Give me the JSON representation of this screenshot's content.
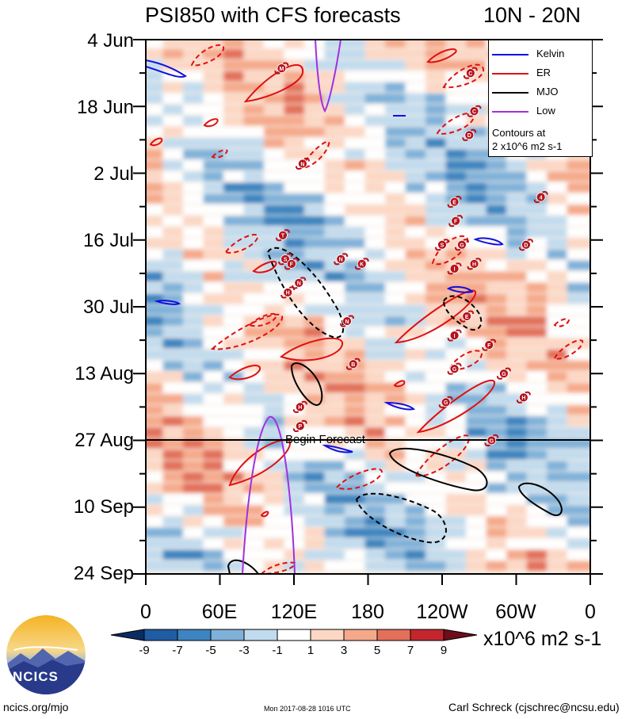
{
  "title": {
    "main": "PSI850 with CFS forecasts",
    "region": "10N - 20N"
  },
  "chart_data": {
    "type": "heatmap",
    "description_kind": "time-longitude Hovmoller",
    "x": {
      "ticks": [
        "0",
        "60E",
        "120E",
        "180",
        "120W",
        "60W",
        "0"
      ],
      "tick_values_deg_east": [
        0,
        60,
        120,
        180,
        240,
        300,
        360
      ],
      "range": [
        0,
        360
      ]
    },
    "y": {
      "ticks": [
        "4 Jun",
        "18 Jun",
        "2 Jul",
        "16 Jul",
        "30 Jul",
        "13 Aug",
        "27 Aug",
        "10 Sep",
        "24 Sep"
      ],
      "range": [
        "2017-06-04",
        "2017-09-24"
      ],
      "direction": "down"
    },
    "forecast_start": {
      "date": "2017-08-27",
      "label": "Begin Forecast"
    },
    "colorbar": {
      "labels": [
        "-9",
        "-7",
        "-5",
        "-3",
        "-1",
        "1",
        "3",
        "5",
        "7",
        "9"
      ],
      "levels": [
        -9,
        -7,
        -5,
        -3,
        -1,
        1,
        3,
        5,
        7,
        9
      ],
      "colors": [
        "#0b2c63",
        "#1f5ca3",
        "#3d84c0",
        "#7fb1d9",
        "#c1dbee",
        "#ffffff",
        "#fcd7c4",
        "#f5a98a",
        "#e2705a",
        "#c4262e",
        "#6d0e1a"
      ],
      "units": "x10^6 m2 s-1"
    },
    "legend": {
      "entries": [
        {
          "name": "Kelvin",
          "color": "#1010e0"
        },
        {
          "name": "ER",
          "color": "#e01010"
        },
        {
          "name": "MJO",
          "color": "#000000"
        },
        {
          "name": "Low",
          "color": "#a030e0"
        }
      ],
      "note_line1": "Contours at",
      "note_line2": "2 x10^6 m2 s-1",
      "placement": "top-right"
    },
    "storms": [
      {
        "letter": "M",
        "lon": 110,
        "date": "2017-06-10"
      },
      {
        "letter": "C",
        "lon": 263,
        "date": "2017-06-11"
      },
      {
        "letter": "C",
        "lon": 266,
        "date": "2017-06-19"
      },
      {
        "letter": "D",
        "lon": 262,
        "date": "2017-06-24"
      },
      {
        "letter": "N",
        "lon": 127,
        "date": "2017-06-30"
      },
      {
        "letter": "4",
        "lon": 320,
        "date": "2017-07-07"
      },
      {
        "letter": "E",
        "lon": 250,
        "date": "2017-07-08"
      },
      {
        "letter": "F",
        "lon": 251,
        "date": "2017-07-12"
      },
      {
        "letter": "T",
        "lon": 111,
        "date": "2017-07-15"
      },
      {
        "letter": "G",
        "lon": 256,
        "date": "2017-07-17"
      },
      {
        "letter": "S",
        "lon": 240,
        "date": "2017-07-17"
      },
      {
        "letter": "D",
        "lon": 308,
        "date": "2017-07-17"
      },
      {
        "letter": "S",
        "lon": 113,
        "date": "2017-07-20"
      },
      {
        "letter": "F",
        "lon": 118,
        "date": "2017-07-21"
      },
      {
        "letter": "N",
        "lon": 158,
        "date": "2017-07-20"
      },
      {
        "letter": "K",
        "lon": 175,
        "date": "2017-07-21"
      },
      {
        "letter": "H",
        "lon": 266,
        "date": "2017-07-21"
      },
      {
        "letter": "I",
        "lon": 250,
        "date": "2017-07-22"
      },
      {
        "letter": "N",
        "lon": 124,
        "date": "2017-07-25"
      },
      {
        "letter": "H",
        "lon": 115,
        "date": "2017-07-27"
      },
      {
        "letter": "E",
        "lon": 260,
        "date": "2017-08-01"
      },
      {
        "letter": "N",
        "lon": 163,
        "date": "2017-08-02"
      },
      {
        "letter": "I",
        "lon": 250,
        "date": "2017-08-05"
      },
      {
        "letter": "F",
        "lon": 278,
        "date": "2017-08-07"
      },
      {
        "letter": "B",
        "lon": 168,
        "date": "2017-08-11"
      },
      {
        "letter": "G",
        "lon": 250,
        "date": "2017-08-12"
      },
      {
        "letter": "G",
        "lon": 290,
        "date": "2017-08-13"
      },
      {
        "letter": "H",
        "lon": 306,
        "date": "2017-08-18"
      },
      {
        "letter": "G",
        "lon": 243,
        "date": "2017-08-19"
      },
      {
        "letter": "H",
        "lon": 125,
        "date": "2017-08-20"
      },
      {
        "letter": "P",
        "lon": 125,
        "date": "2017-08-24"
      },
      {
        "letter": "G",
        "lon": 280,
        "date": "2017-08-27"
      }
    ]
  },
  "footer": {
    "url": "ncics.org/mjo",
    "timestamp": "Mon 2017-08-28 1016 UTC",
    "author": "Carl Schreck (cjschrec@ncsu.edu)",
    "logo_text": "NCICS"
  }
}
